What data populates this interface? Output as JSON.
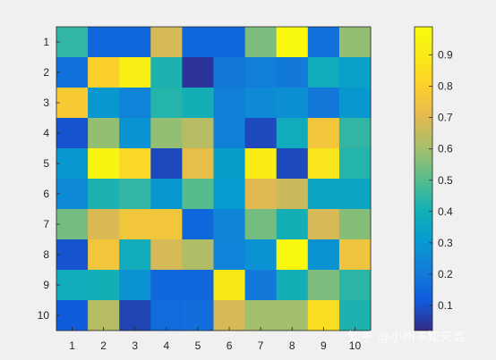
{
  "chart_data": {
    "type": "heatmap",
    "x": [
      "1",
      "2",
      "3",
      "4",
      "5",
      "6",
      "7",
      "8",
      "9",
      "10"
    ],
    "y": [
      "1",
      "2",
      "3",
      "4",
      "5",
      "6",
      "7",
      "8",
      "9",
      "10"
    ],
    "values": [
      [
        0.45,
        0.15,
        0.15,
        0.68,
        0.15,
        0.15,
        0.55,
        0.98,
        0.18,
        0.58
      ],
      [
        0.18,
        0.8,
        0.93,
        0.42,
        0.04,
        0.2,
        0.22,
        0.2,
        0.38,
        0.33
      ],
      [
        0.78,
        0.3,
        0.23,
        0.43,
        0.4,
        0.22,
        0.25,
        0.27,
        0.2,
        0.3
      ],
      [
        0.1,
        0.58,
        0.28,
        0.58,
        0.63,
        0.22,
        0.08,
        0.38,
        0.76,
        0.45
      ],
      [
        0.3,
        0.95,
        0.83,
        0.08,
        0.72,
        0.32,
        0.92,
        0.08,
        0.88,
        0.43
      ],
      [
        0.25,
        0.42,
        0.45,
        0.3,
        0.5,
        0.31,
        0.7,
        0.66,
        0.35,
        0.35
      ],
      [
        0.54,
        0.69,
        0.76,
        0.76,
        0.15,
        0.24,
        0.54,
        0.4,
        0.68,
        0.56
      ],
      [
        0.1,
        0.76,
        0.38,
        0.68,
        0.62,
        0.23,
        0.28,
        0.98,
        0.28,
        0.75
      ],
      [
        0.38,
        0.4,
        0.28,
        0.15,
        0.15,
        0.9,
        0.2,
        0.4,
        0.55,
        0.44
      ],
      [
        0.12,
        0.63,
        0.07,
        0.16,
        0.17,
        0.68,
        0.6,
        0.6,
        0.85,
        0.42
      ]
    ],
    "colormap": "parula",
    "colorbar": {
      "range": [
        0.02,
        0.99
      ],
      "ticks": [
        "0.1",
        "0.2",
        "0.3",
        "0.4",
        "0.5",
        "0.6",
        "0.7",
        "0.8",
        "0.9"
      ],
      "location": "right"
    },
    "title": "",
    "xlabel": "",
    "ylabel": "",
    "grid": false
  },
  "watermark": "知乎 @小州不知天高",
  "colors": {
    "background": "#f0f0f0",
    "axes_frame": "#262626"
  }
}
